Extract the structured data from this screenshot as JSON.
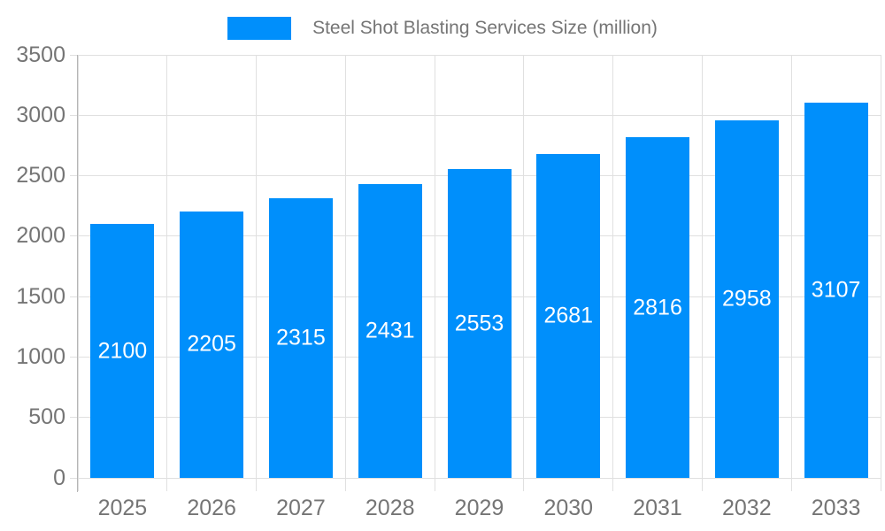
{
  "chart_data": {
    "type": "bar",
    "title": "Steel Shot Blasting Services Size (million)",
    "categories": [
      "2025",
      "2026",
      "2027",
      "2028",
      "2029",
      "2030",
      "2031",
      "2032",
      "2033"
    ],
    "values": [
      2100,
      2205,
      2315,
      2431,
      2553,
      2681,
      2816,
      2958,
      3107
    ],
    "xlabel": "",
    "ylabel": "",
    "ylim": [
      0,
      3500
    ],
    "yticks": [
      0,
      500,
      1000,
      1500,
      2000,
      2500,
      3000,
      3500
    ],
    "grid": true,
    "legend_position": "top",
    "data_labels": "inside-center",
    "colors": {
      "bar": "#008FFB",
      "grid": "#e0e0e0",
      "axis_line": "#b6b6b6",
      "axis_label": "#757575",
      "legend_text": "#757575",
      "value_label": "#ffffff",
      "background": "#ffffff"
    }
  }
}
